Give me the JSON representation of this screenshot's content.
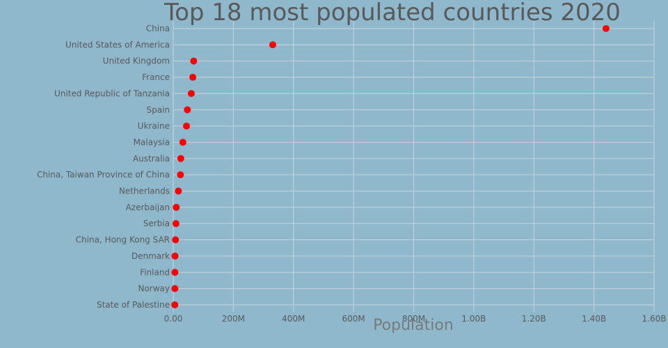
{
  "chart_data": {
    "type": "scatter",
    "title": "Top 18 most populated countries 2020",
    "xlabel": "Population",
    "ylabel": "",
    "xlim": [
      0,
      1600000000
    ],
    "x_ticks": [
      0,
      200000000,
      400000000,
      600000000,
      800000000,
      1000000000,
      1200000000,
      1400000000,
      1600000000
    ],
    "x_tick_labels": [
      "0.00",
      "200M",
      "400M",
      "600M",
      "800M",
      "1.00B",
      "1.20B",
      "1.40B",
      "1.60B"
    ],
    "grid": true,
    "categories": [
      "China",
      "United States of America",
      "United Kingdom",
      "France",
      "United Republic of Tanzania",
      "Spain",
      "Ukraine",
      "Malaysia",
      "Australia",
      "China, Taiwan Province of China",
      "Netherlands",
      "Azerbaijan",
      "Serbia",
      "China, Hong Kong SAR",
      "Denmark",
      "Finland",
      "Norway",
      "State of Palestine"
    ],
    "values": [
      1440000000,
      331000000,
      68000000,
      65000000,
      60000000,
      47000000,
      44000000,
      32000000,
      25000000,
      24000000,
      17000000,
      10000000,
      9000000,
      7500000,
      5800000,
      5500000,
      5400000,
      5100000
    ],
    "marker_color": "#ff0000"
  }
}
